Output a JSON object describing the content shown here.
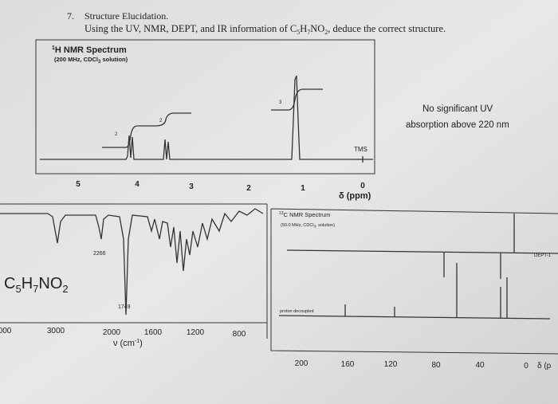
{
  "problem": {
    "number": "7.",
    "title": "Structure Elucidation.",
    "instruction": "Using the UV, NMR, DEPT, and IR information of ",
    "formula": [
      "C",
      "5",
      "H",
      "7",
      "NO",
      "2"
    ],
    "instruction_end": ", deduce the correct structure."
  },
  "hnmr": {
    "title_sup": "1",
    "title": "H NMR Spectrum",
    "subtitle": "(200 MHz, CDCl",
    "subtitle_sub": "3",
    "subtitle_end": " solution)",
    "integrals": [
      "2",
      "2",
      "3"
    ],
    "reference": "TMS",
    "ticks": [
      "5",
      "4",
      "3",
      "2",
      "1",
      "0"
    ],
    "axis_label": "δ (ppm)"
  },
  "uv": {
    "lines": [
      "No significant UV",
      "absorption above 220 nm"
    ]
  },
  "ir": {
    "formula": [
      "C",
      "5",
      "H",
      "7",
      "NO",
      "2"
    ],
    "peaks": [
      "2266",
      "1749"
    ],
    "ticks": [
      "000",
      "3000",
      "2000",
      "1600",
      "1200",
      "800"
    ],
    "axis_label": "ν (cm",
    "axis_label_sup": "-1",
    "axis_label_end": ")"
  },
  "cnmr": {
    "title_sup": "13",
    "title": "C NMR Spectrum",
    "subtitle": "(50.0 MHz, CDCl",
    "subtitle_sub": "3",
    "subtitle_end": ", solution)",
    "dept": "DEPT-1",
    "decoupled": "proton decoupled",
    "ticks": [
      "200",
      "160",
      "120",
      "80",
      "40",
      "0"
    ],
    "axis_label": "δ (p"
  }
}
